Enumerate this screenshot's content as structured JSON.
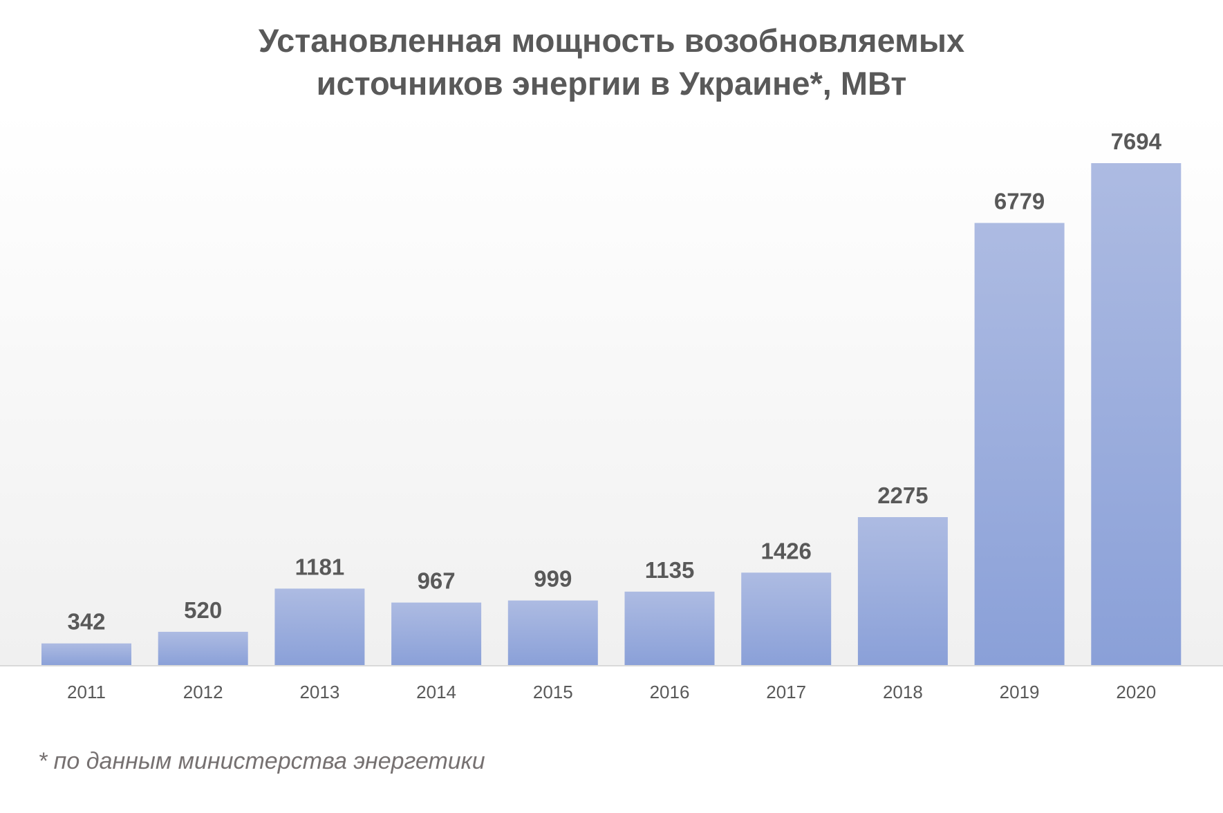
{
  "chart_data": {
    "type": "bar",
    "title": "Установленная мощность возобновляемых источников энергии в Украине*, МВт",
    "title_lines": [
      "Установленная мощность возобновляемых",
      "источников энергии в Украине*, МВт"
    ],
    "xlabel": "",
    "ylabel": "",
    "categories": [
      "2011",
      "2012",
      "2013",
      "2014",
      "2015",
      "2016",
      "2017",
      "2018",
      "2019",
      "2020"
    ],
    "values": [
      342,
      520,
      1181,
      967,
      999,
      1135,
      1426,
      2275,
      6779,
      7694
    ],
    "ylim": [
      0,
      7694
    ],
    "grid": false,
    "legend": "none",
    "bar_color_top": "#adbbe2",
    "bar_color_bottom": "#8aa0d8"
  },
  "footnote": "* по данным министерства энергетики"
}
